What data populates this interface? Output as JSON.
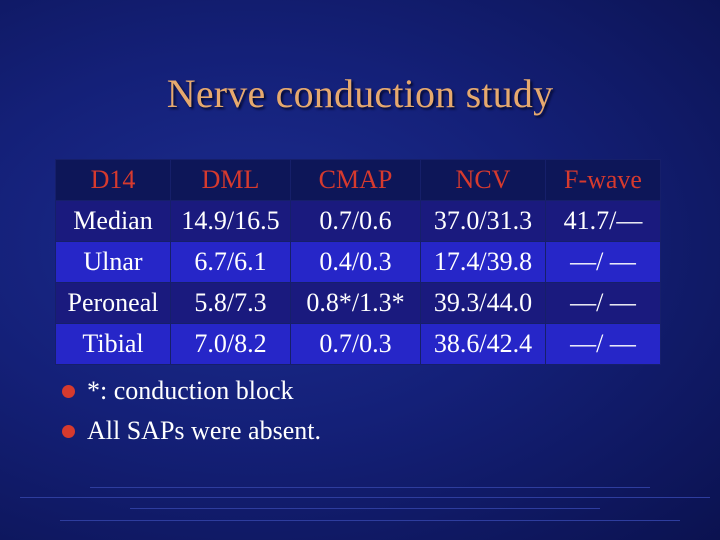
{
  "slide": {
    "title": "Nerve conduction study",
    "table": {
      "header": [
        "D14",
        "DML",
        "CMAP",
        "NCV",
        "F-wave"
      ],
      "rows": [
        [
          "Median",
          "14.9/16.5",
          "0.7/0.6",
          "37.0/31.3",
          "41.7/—"
        ],
        [
          "Ulnar",
          "6.7/6.1",
          "0.4/0.3",
          "17.4/39.8",
          "—/ —"
        ],
        [
          "Peroneal",
          "5.8/7.3",
          "0.8*/1.3*",
          "39.3/44.0",
          "—/ —"
        ],
        [
          "Tibial",
          "7.0/8.2",
          "0.7/0.3",
          "38.6/42.4",
          "—/ —"
        ]
      ]
    },
    "bullets": [
      "*: conduction block",
      "All SAPs were absent."
    ],
    "colors": {
      "background": "#142078",
      "title": "#e6a96e",
      "header_text": "#d63a2e",
      "bullet_marker": "#d63a2e",
      "row_dark": "#1a1a7e",
      "row_light": "#2626c8"
    }
  }
}
